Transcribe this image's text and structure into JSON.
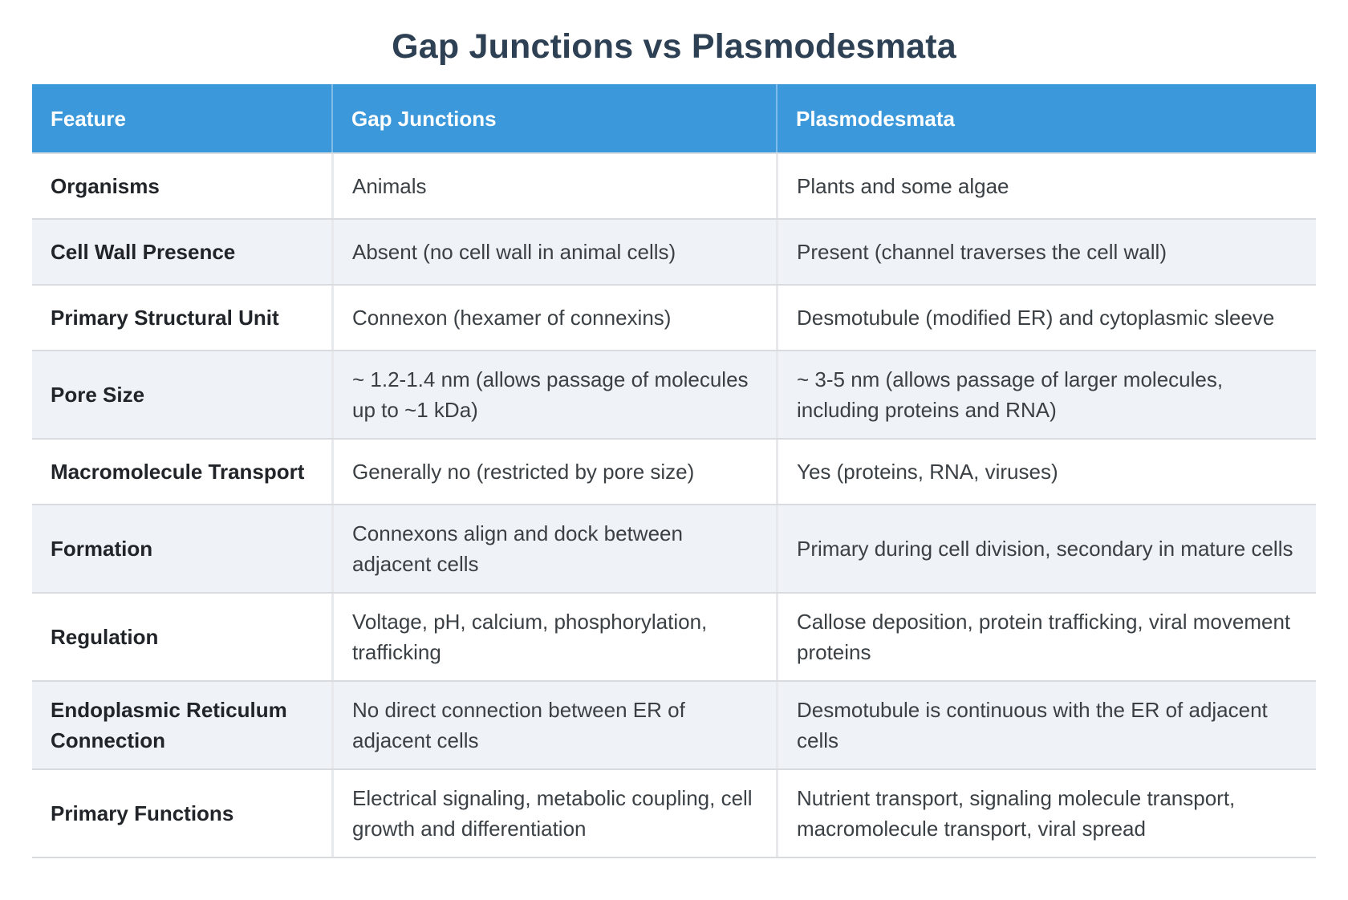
{
  "title": "Gap Junctions vs Plasmodesmata",
  "table": {
    "headers": [
      "Feature",
      "Gap Junctions",
      "Plasmodesmata"
    ],
    "rows": [
      {
        "feature": "Organisms",
        "gap_junctions": "Animals",
        "plasmodesmata": "Plants and some algae"
      },
      {
        "feature": "Cell Wall Presence",
        "gap_junctions": "Absent (no cell wall in animal cells)",
        "plasmodesmata": "Present (channel traverses the cell wall)"
      },
      {
        "feature": "Primary Structural Unit",
        "gap_junctions": "Connexon (hexamer of connexins)",
        "plasmodesmata": "Desmotubule (modified ER) and cytoplasmic sleeve"
      },
      {
        "feature": "Pore Size",
        "gap_junctions": "~ 1.2-1.4 nm (allows passage of molecules up to ~1 kDa)",
        "plasmodesmata": "~ 3-5 nm (allows passage of larger molecules, including proteins and RNA)"
      },
      {
        "feature": "Macromolecule Transport",
        "gap_junctions": "Generally no (restricted by pore size)",
        "plasmodesmata": "Yes (proteins, RNA, viruses)"
      },
      {
        "feature": "Formation",
        "gap_junctions": "Connexons align and dock between adjacent cells",
        "plasmodesmata": "Primary during cell division, secondary in mature cells"
      },
      {
        "feature": "Regulation",
        "gap_junctions": "Voltage, pH, calcium, phosphorylation, trafficking",
        "plasmodesmata": "Callose deposition, protein trafficking, viral movement proteins"
      },
      {
        "feature": "Endoplasmic Reticulum Connection",
        "gap_junctions": "No direct connection between ER of adjacent cells",
        "plasmodesmata": "Desmotubule is continuous with the ER of adjacent cells"
      },
      {
        "feature": "Primary Functions",
        "gap_junctions": "Electrical signaling, metabolic coupling, cell growth and differentiation",
        "plasmodesmata": "Nutrient transport, signaling molecule transport, macromolecule transport, viral spread"
      }
    ]
  },
  "colors": {
    "header_background": "#3b98db",
    "header_text": "#ffffff",
    "title_text": "#2e4154",
    "alt_row_background": "#eff2f6",
    "row_border": "#d9dcdf",
    "column_divider": "#e7e9ec",
    "feature_text": "#212428",
    "body_text": "#3b4045"
  }
}
